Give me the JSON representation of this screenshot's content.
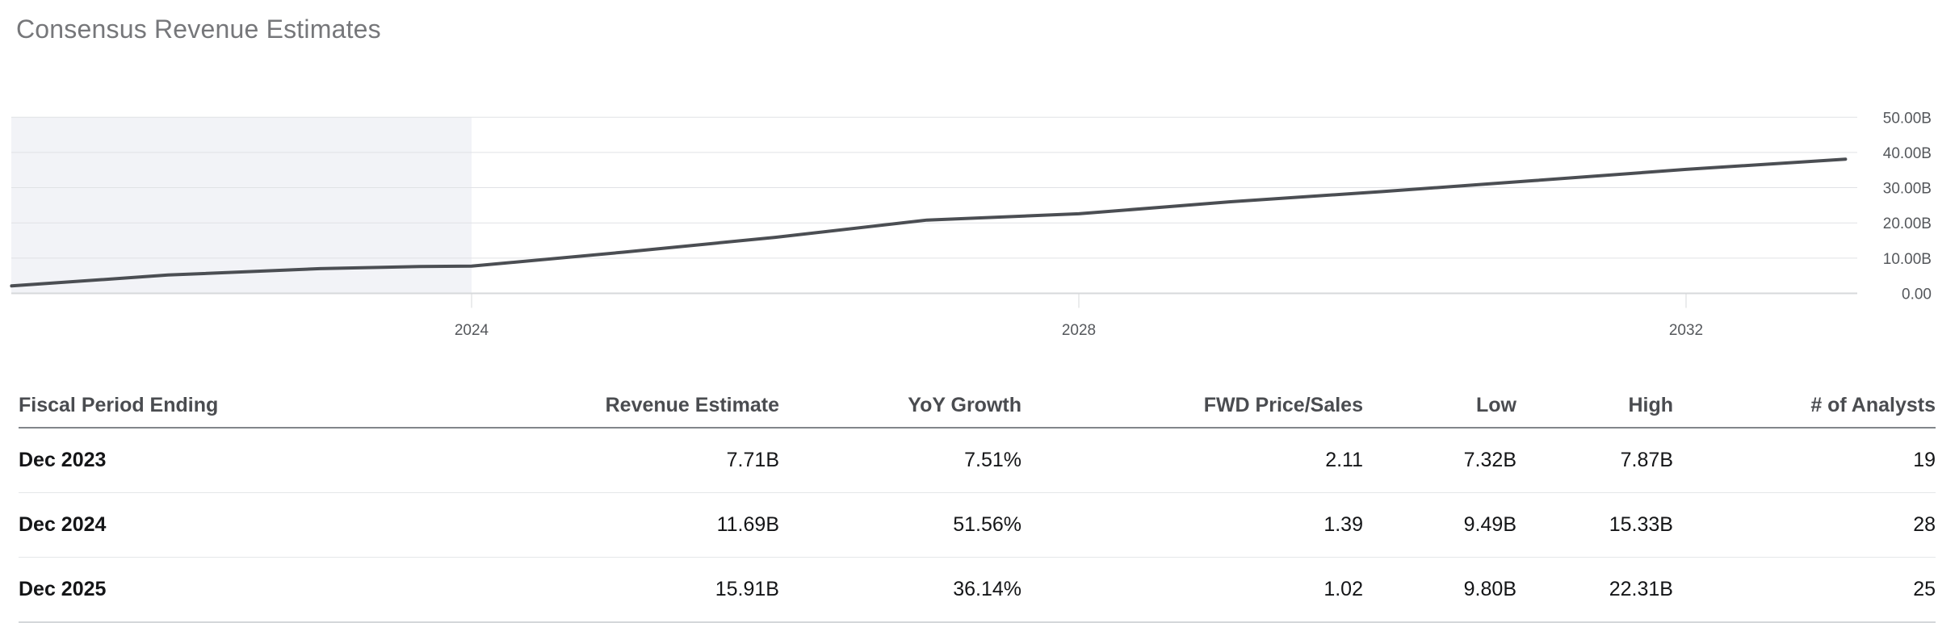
{
  "page": {
    "title": "Consensus Revenue Estimates"
  },
  "chart_data": {
    "type": "line",
    "title": "Consensus Revenue Estimates",
    "unit": "USD billions",
    "series": [
      {
        "name": "Revenue Estimate",
        "x": [
          2020.97,
          2022,
          2023,
          2023.66,
          2024,
          2025,
          2026,
          2027,
          2028,
          2029,
          2030,
          2031,
          2032,
          2033.05
        ],
        "values": [
          2.1,
          5.2,
          7.0,
          7.6,
          7.71,
          11.69,
          15.91,
          20.8,
          22.6,
          26.0,
          28.9,
          32.0,
          35.2,
          38.1
        ]
      }
    ],
    "x_ticks": [
      {
        "value": 2024,
        "label": "2024"
      },
      {
        "value": 2028,
        "label": "2028"
      },
      {
        "value": 2032,
        "label": "2032"
      }
    ],
    "y_ticks": [
      {
        "value": 50,
        "label": "50.00B"
      },
      {
        "value": 40,
        "label": "40.00B"
      },
      {
        "value": 30,
        "label": "30.00B"
      },
      {
        "value": 20,
        "label": "20.00B"
      },
      {
        "value": 10,
        "label": "10.00B"
      },
      {
        "value": 0,
        "label": "0.00"
      }
    ],
    "ylim": [
      0,
      56
    ],
    "xlim": [
      2020.95,
      2033.15
    ],
    "grid": "horizontal",
    "y_axis_position": "right",
    "legend": "none",
    "highlight_region": {
      "x_start": 2020.95,
      "x_end": 2024,
      "meaning": "historical period"
    }
  },
  "table": {
    "columns": [
      {
        "key": "period",
        "label": "Fiscal Period Ending",
        "align": "left"
      },
      {
        "key": "revenue",
        "label": "Revenue Estimate",
        "align": "right"
      },
      {
        "key": "yoy",
        "label": "YoY Growth",
        "align": "right"
      },
      {
        "key": "fwd_ps",
        "label": "FWD Price/Sales",
        "align": "right"
      },
      {
        "key": "low",
        "label": "Low",
        "align": "right"
      },
      {
        "key": "high",
        "label": "High",
        "align": "right"
      },
      {
        "key": "analysts",
        "label": "# of Analysts",
        "align": "right"
      }
    ],
    "rows": [
      [
        "Dec 2023",
        "7.71B",
        "7.51%",
        "2.11",
        "7.32B",
        "7.87B",
        "19"
      ],
      [
        "Dec 2024",
        "11.69B",
        "51.56%",
        "1.39",
        "9.49B",
        "15.33B",
        "28"
      ],
      [
        "Dec 2025",
        "15.91B",
        "36.14%",
        "1.02",
        "9.80B",
        "22.31B",
        "25"
      ]
    ]
  },
  "colors": {
    "title": "#76777a",
    "line": "#4b4e53",
    "highlight_fill": "#f2f3f7",
    "gridline": "#e0e2e5",
    "axis_line": "#d7d9db",
    "tick_text": "#55585c",
    "header_text": "#4a4c50",
    "cell_text": "#141517",
    "header_rule": "#82868a",
    "row_divider": "#e5e7e9",
    "bottom_rule": "#d4d7da"
  }
}
